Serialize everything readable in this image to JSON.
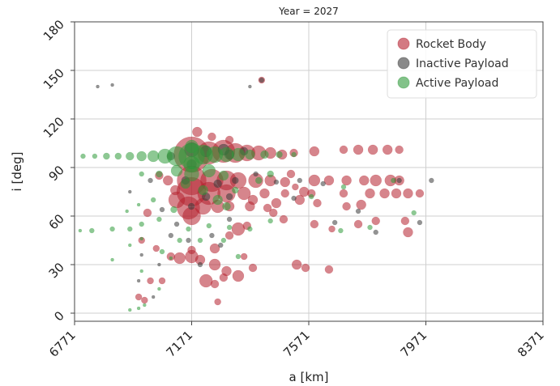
{
  "chart_data": {
    "type": "scatter",
    "title": "Year = 2027",
    "xlabel": "a [km]",
    "ylabel": "i [deg]",
    "xlim": [
      6771,
      8371
    ],
    "ylim": [
      -5,
      180
    ],
    "xticks": [
      "6771",
      "7171",
      "7571",
      "7971",
      "8371"
    ],
    "yticks": [
      "0",
      "30",
      "60",
      "90",
      "120",
      "150",
      "180"
    ],
    "grid": true,
    "legend_position": "top-right",
    "series": [
      {
        "name": "Rocket Body",
        "color": "#b5202e",
        "points": [
          [
            7171,
            98,
            22
          ],
          [
            7230,
            99,
            14
          ],
          [
            7280,
            100,
            14
          ],
          [
            7320,
            99,
            12
          ],
          [
            7360,
            99,
            10
          ],
          [
            7400,
            99,
            9
          ],
          [
            7440,
            99,
            7
          ],
          [
            7480,
            98,
            6
          ],
          [
            7520,
            99,
            5
          ],
          [
            7590,
            100,
            6
          ],
          [
            7690,
            101,
            5
          ],
          [
            7740,
            101,
            6
          ],
          [
            7790,
            101,
            6
          ],
          [
            7840,
            101,
            6
          ],
          [
            7880,
            101,
            5
          ],
          [
            7190,
            112,
            6
          ],
          [
            7240,
            109,
            5
          ],
          [
            7300,
            107,
            5
          ],
          [
            7171,
            82,
            18
          ],
          [
            7240,
            82,
            14
          ],
          [
            7290,
            82,
            12
          ],
          [
            7330,
            82,
            10
          ],
          [
            7390,
            82,
            9
          ],
          [
            7440,
            82,
            7
          ],
          [
            7490,
            81,
            6
          ],
          [
            7590,
            82,
            7
          ],
          [
            7640,
            82,
            6
          ],
          [
            7700,
            82,
            6
          ],
          [
            7760,
            82,
            6
          ],
          [
            7800,
            82,
            7
          ],
          [
            7850,
            82,
            7
          ],
          [
            7880,
            82,
            6
          ],
          [
            7170,
            75,
            18
          ],
          [
            7230,
            74,
            14
          ],
          [
            7290,
            74,
            11
          ],
          [
            7350,
            74,
            8
          ],
          [
            7420,
            74,
            6
          ],
          [
            7490,
            74,
            5
          ],
          [
            7580,
            74,
            5
          ],
          [
            7690,
            74,
            5
          ],
          [
            7780,
            74,
            6
          ],
          [
            7830,
            74,
            6
          ],
          [
            7870,
            74,
            6
          ],
          [
            7910,
            74,
            6
          ],
          [
            7950,
            74,
            5
          ],
          [
            7120,
            70,
            10
          ],
          [
            7160,
            65,
            14
          ],
          [
            7210,
            66,
            10
          ],
          [
            7260,
            66,
            8
          ],
          [
            7300,
            66,
            6
          ],
          [
            7370,
            66,
            6
          ],
          [
            7430,
            65,
            5
          ],
          [
            7540,
            70,
            6
          ],
          [
            7600,
            68,
            5
          ],
          [
            7700,
            66,
            5
          ],
          [
            7750,
            67,
            6
          ],
          [
            7171,
            60,
            11
          ],
          [
            7020,
            62,
            5
          ],
          [
            7800,
            57,
            5
          ],
          [
            7900,
            57,
            5
          ],
          [
            7910,
            50,
            6
          ],
          [
            7740,
            55,
            5
          ],
          [
            7590,
            55,
            5
          ],
          [
            7650,
            52,
            4
          ],
          [
            7360,
            54,
            5
          ],
          [
            7330,
            52,
            8
          ],
          [
            7300,
            48,
            5
          ],
          [
            7250,
            40,
            6
          ],
          [
            7171,
            39,
            5
          ],
          [
            7130,
            34,
            7
          ],
          [
            7171,
            35,
            8
          ],
          [
            7200,
            33,
            6
          ],
          [
            7250,
            30,
            7
          ],
          [
            7290,
            26,
            6
          ],
          [
            7330,
            23,
            7
          ],
          [
            7220,
            20,
            8
          ],
          [
            7280,
            22,
            5
          ],
          [
            7350,
            35,
            4
          ],
          [
            7380,
            28,
            5
          ],
          [
            7530,
            30,
            6
          ],
          [
            7560,
            28,
            5
          ],
          [
            7640,
            27,
            5
          ],
          [
            7100,
            35,
            5
          ],
          [
            7050,
            40,
            4
          ],
          [
            7000,
            45,
            4
          ],
          [
            7070,
            20,
            4
          ],
          [
            7030,
            20,
            4
          ],
          [
            6990,
            10,
            4
          ],
          [
            7010,
            8,
            4
          ],
          [
            7260,
            7,
            4
          ],
          [
            7250,
            18,
            5
          ],
          [
            7410,
            144,
            4
          ],
          [
            7510,
            86,
            5
          ],
          [
            7060,
            85,
            5
          ],
          [
            7090,
            82,
            6
          ],
          [
            7115,
            76,
            6
          ],
          [
            7380,
            70,
            6
          ],
          [
            7450,
            62,
            5
          ],
          [
            7485,
            58,
            5
          ],
          [
            7460,
            68,
            6
          ],
          [
            7525,
            78,
            4
          ],
          [
            7555,
            75,
            6
          ]
        ]
      },
      {
        "name": "Inactive Payload",
        "color": "#3a3a3a",
        "points": [
          [
            7171,
            101,
            9
          ],
          [
            7220,
            100,
            7
          ],
          [
            7280,
            101,
            7
          ],
          [
            7300,
            98,
            6
          ],
          [
            7350,
            100,
            5
          ],
          [
            7171,
            92,
            6
          ],
          [
            7100,
            97,
            5
          ],
          [
            7150,
            82,
            5
          ],
          [
            7260,
            80,
            5
          ],
          [
            7320,
            82,
            4
          ],
          [
            7220,
            72,
            5
          ],
          [
            7300,
            72,
            4
          ],
          [
            7410,
            144,
            3
          ],
          [
            7370,
            140,
            2
          ],
          [
            6900,
            141,
            2
          ],
          [
            6850,
            140,
            2
          ],
          [
            7030,
            82,
            3
          ],
          [
            7070,
            64,
            3
          ],
          [
            7120,
            55,
            3
          ],
          [
            7160,
            45,
            3
          ],
          [
            7200,
            30,
            3
          ],
          [
            7060,
            30,
            2
          ],
          [
            7000,
            36,
            2
          ],
          [
            7040,
            10,
            2
          ],
          [
            6960,
            75,
            2
          ],
          [
            7390,
            86,
            3
          ],
          [
            7520,
            71,
            3
          ],
          [
            7620,
            80,
            3
          ],
          [
            7880,
            82,
            3
          ],
          [
            7990,
            82,
            3
          ],
          [
            7950,
            56,
            3
          ],
          [
            7740,
            63,
            3
          ],
          [
            7660,
            56,
            3
          ],
          [
            7800,
            50,
            3
          ],
          [
            7540,
            82,
            3
          ],
          [
            7460,
            81,
            3
          ],
          [
            7100,
            48,
            3
          ],
          [
            7240,
            48,
            3
          ],
          [
            7300,
            58,
            3
          ],
          [
            7170,
            66,
            4
          ],
          [
            7270,
            42,
            3
          ],
          [
            6990,
            20,
            2
          ]
        ]
      },
      {
        "name": "Active Payload",
        "color": "#2f9a3a",
        "points": [
          [
            6800,
            97,
            3
          ],
          [
            6840,
            97,
            3
          ],
          [
            6880,
            97,
            4
          ],
          [
            6920,
            97,
            4
          ],
          [
            6960,
            97,
            5
          ],
          [
            7000,
            97,
            6
          ],
          [
            7040,
            97,
            7
          ],
          [
            7080,
            97,
            9
          ],
          [
            7120,
            97,
            12
          ],
          [
            7171,
            97,
            16
          ],
          [
            7210,
            98,
            12
          ],
          [
            7250,
            98,
            10
          ],
          [
            7290,
            98,
            9
          ],
          [
            7330,
            98,
            8
          ],
          [
            7370,
            98,
            6
          ],
          [
            7420,
            98,
            5
          ],
          [
            7470,
            98,
            4
          ],
          [
            7520,
            98,
            3
          ],
          [
            7171,
            103,
            8
          ],
          [
            7171,
            92,
            10
          ],
          [
            7120,
            88,
            7
          ],
          [
            7230,
            88,
            8
          ],
          [
            7280,
            85,
            6
          ],
          [
            7171,
            86,
            9
          ],
          [
            7060,
            86,
            4
          ],
          [
            7000,
            86,
            3
          ],
          [
            7150,
            80,
            6
          ],
          [
            7210,
            76,
            6
          ],
          [
            7260,
            70,
            6
          ],
          [
            7290,
            66,
            5
          ],
          [
            7320,
            76,
            4
          ],
          [
            7400,
            82,
            4
          ],
          [
            7440,
            86,
            4
          ],
          [
            7110,
            64,
            4
          ],
          [
            7060,
            58,
            3
          ],
          [
            7000,
            55,
            3
          ],
          [
            6960,
            52,
            3
          ],
          [
            6900,
            52,
            3
          ],
          [
            6830,
            51,
            3
          ],
          [
            6790,
            51,
            2
          ],
          [
            7160,
            52,
            3
          ],
          [
            7230,
            54,
            3
          ],
          [
            7300,
            53,
            3
          ],
          [
            7370,
            52,
            3
          ],
          [
            7440,
            57,
            3
          ],
          [
            7680,
            51,
            3
          ],
          [
            7780,
            53,
            3
          ],
          [
            7930,
            62,
            3
          ],
          [
            7860,
            82,
            3
          ],
          [
            7580,
            72,
            3
          ],
          [
            7690,
            78,
            3
          ],
          [
            7040,
            70,
            3
          ],
          [
            6990,
            67,
            2
          ],
          [
            6950,
            63,
            2
          ],
          [
            7130,
            45,
            3
          ],
          [
            7200,
            45,
            3
          ],
          [
            7280,
            45,
            3
          ],
          [
            7330,
            35,
            3
          ],
          [
            7070,
            38,
            3
          ],
          [
            6960,
            42,
            2
          ],
          [
            6900,
            33,
            2
          ],
          [
            7000,
            26,
            2
          ],
          [
            6960,
            2,
            2
          ],
          [
            6990,
            3,
            2
          ],
          [
            7010,
            5,
            2
          ],
          [
            7060,
            15,
            2
          ],
          [
            7000,
            46,
            2
          ],
          [
            7100,
            34,
            2
          ]
        ]
      }
    ]
  }
}
